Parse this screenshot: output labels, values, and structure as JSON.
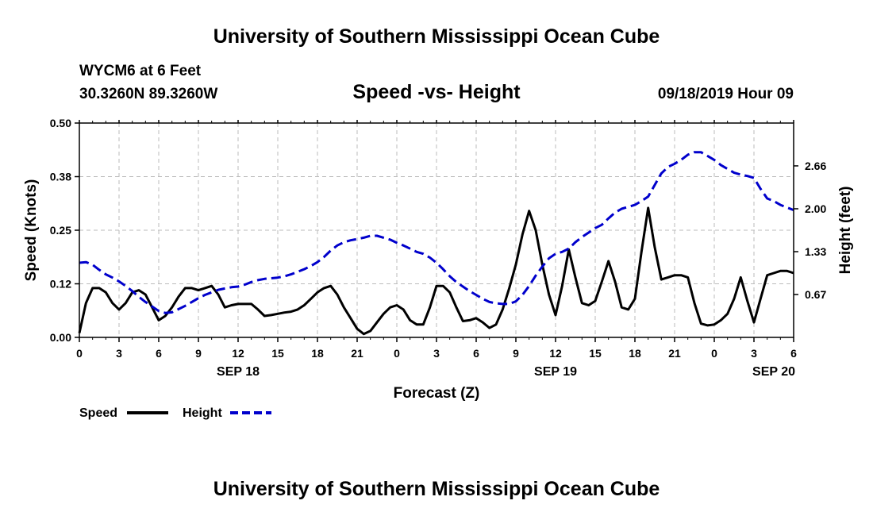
{
  "header": {
    "title": "University of Southern Mississippi Ocean Cube",
    "station": "WYCM6 at 6 Feet",
    "coords": "30.3260N 89.3260W",
    "subtitle": "Speed -vs- Height",
    "datetime": "09/18/2019 Hour 09"
  },
  "footer": {
    "title": "University of Southern Mississippi Ocean Cube"
  },
  "colors": {
    "speed": "#000000",
    "height": "#0000cc",
    "grid": "#bbbbbb"
  },
  "chart_data": {
    "type": "line",
    "title": "Speed -vs- Height",
    "xlabel": "Forecast (Z)",
    "ylabel_left": "Speed (Knots)",
    "ylabel_right": "Height (feet)",
    "x_hours_range": [
      0,
      54
    ],
    "x_ticks": [
      {
        "h": 0,
        "label": "0"
      },
      {
        "h": 3,
        "label": "3"
      },
      {
        "h": 6,
        "label": "6"
      },
      {
        "h": 9,
        "label": "9"
      },
      {
        "h": 12,
        "label": "12"
      },
      {
        "h": 15,
        "label": "15"
      },
      {
        "h": 18,
        "label": "18"
      },
      {
        "h": 21,
        "label": "21"
      },
      {
        "h": 24,
        "label": "0"
      },
      {
        "h": 27,
        "label": "3"
      },
      {
        "h": 30,
        "label": "6"
      },
      {
        "h": 33,
        "label": "9"
      },
      {
        "h": 36,
        "label": "12"
      },
      {
        "h": 39,
        "label": "15"
      },
      {
        "h": 42,
        "label": "18"
      },
      {
        "h": 45,
        "label": "21"
      },
      {
        "h": 48,
        "label": "0"
      },
      {
        "h": 51,
        "label": "3"
      },
      {
        "h": 54,
        "label": "6"
      }
    ],
    "date_labels": [
      {
        "h": 12,
        "label": "SEP 18"
      },
      {
        "h": 36,
        "label": "SEP 19"
      },
      {
        "h": 52.5,
        "label": "SEP 20"
      }
    ],
    "y_left": {
      "range": [
        0,
        0.5
      ],
      "ticks": [
        {
          "v": 0,
          "label": "0.00"
        },
        {
          "v": 0.125,
          "label": "0.12"
        },
        {
          "v": 0.25,
          "label": "0.25"
        },
        {
          "v": 0.375,
          "label": "0.38"
        },
        {
          "v": 0.5,
          "label": "0.50"
        }
      ]
    },
    "y_right": {
      "range": [
        0,
        3.333
      ],
      "ticks": [
        {
          "v": 0.667,
          "label": "0.67"
        },
        {
          "v": 1.333,
          "label": "1.33"
        },
        {
          "v": 2.0,
          "label": "2.00"
        },
        {
          "v": 2.667,
          "label": "2.66"
        }
      ]
    },
    "series": [
      {
        "name": "Speed",
        "axis": "left",
        "x": [
          0,
          0.5,
          1,
          1.5,
          2,
          2.5,
          3,
          3.5,
          4,
          4.5,
          5,
          5.5,
          6,
          6.5,
          7,
          7.5,
          8,
          8.5,
          9,
          9.5,
          10,
          10.5,
          11,
          11.5,
          12,
          12.5,
          13,
          13.5,
          14,
          14.5,
          15,
          15.5,
          16,
          16.5,
          17,
          17.5,
          18,
          18.5,
          19,
          19.5,
          20,
          20.5,
          21,
          21.5,
          22,
          22.5,
          23,
          23.5,
          24,
          24.5,
          25,
          25.5,
          26,
          26.5,
          27,
          27.5,
          28,
          28.5,
          29,
          29.5,
          30,
          30.5,
          31,
          31.5,
          32,
          32.5,
          33,
          33.5,
          34,
          34.5,
          35,
          35.5,
          36,
          36.5,
          37,
          37.5,
          38,
          38.5,
          39,
          39.5,
          40,
          40.5,
          41,
          41.5,
          42,
          42.5,
          43,
          43.5,
          44,
          44.5,
          45,
          45.5,
          46,
          46.5,
          47,
          47.5,
          48,
          48.5,
          49,
          49.5,
          50,
          50.5,
          51,
          51.5,
          52,
          52.5,
          53,
          53.5,
          54
        ],
        "values": [
          0.01,
          0.08,
          0.115,
          0.115,
          0.105,
          0.08,
          0.065,
          0.08,
          0.105,
          0.11,
          0.1,
          0.07,
          0.04,
          0.05,
          0.07,
          0.095,
          0.115,
          0.115,
          0.11,
          0.115,
          0.12,
          0.1,
          0.07,
          0.075,
          0.078,
          0.078,
          0.078,
          0.065,
          0.05,
          0.052,
          0.055,
          0.058,
          0.06,
          0.065,
          0.075,
          0.09,
          0.105,
          0.115,
          0.12,
          0.1,
          0.07,
          0.045,
          0.02,
          0.008,
          0.015,
          0.035,
          0.055,
          0.07,
          0.075,
          0.065,
          0.04,
          0.03,
          0.03,
          0.07,
          0.12,
          0.12,
          0.105,
          0.07,
          0.038,
          0.04,
          0.045,
          0.035,
          0.022,
          0.03,
          0.065,
          0.115,
          0.17,
          0.24,
          0.295,
          0.25,
          0.17,
          0.1,
          0.052,
          0.12,
          0.205,
          0.14,
          0.08,
          0.075,
          0.085,
          0.13,
          0.178,
          0.13,
          0.07,
          0.065,
          0.09,
          0.2,
          0.302,
          0.21,
          0.135,
          0.14,
          0.145,
          0.145,
          0.14,
          0.08,
          0.032,
          0.028,
          0.03,
          0.04,
          0.055,
          0.09,
          0.14,
          0.085,
          0.035,
          0.09,
          0.145,
          0.15,
          0.155,
          0.155,
          0.15
        ]
      },
      {
        "name": "Height",
        "axis": "right",
        "x": [
          0,
          0.5,
          1,
          1.5,
          2,
          2.5,
          3,
          3.5,
          4,
          4.5,
          5,
          5.5,
          6,
          6.5,
          7,
          7.5,
          8,
          8.5,
          9,
          9.5,
          10,
          10.5,
          11,
          11.5,
          12,
          12.5,
          13,
          13.5,
          14,
          14.5,
          15,
          15.5,
          16,
          16.5,
          17,
          17.5,
          18,
          18.5,
          19,
          19.5,
          20,
          20.5,
          21,
          21.5,
          22,
          22.5,
          23,
          23.5,
          24,
          24.5,
          25,
          25.5,
          26,
          26.5,
          27,
          27.5,
          28,
          28.5,
          29,
          29.5,
          30,
          30.5,
          31,
          31.5,
          32,
          32.5,
          33,
          33.5,
          34,
          34.5,
          35,
          35.5,
          36,
          36.5,
          37,
          37.5,
          38,
          38.5,
          39,
          39.5,
          40,
          40.5,
          41,
          41.5,
          42,
          42.5,
          43,
          43.5,
          44,
          44.5,
          45,
          45.5,
          46,
          46.5,
          47,
          47.5,
          48,
          48.5,
          49,
          49.5,
          50,
          50.5,
          51,
          51.5,
          52,
          52.5,
          53,
          53.5,
          54
        ],
        "values": [
          1.16,
          1.17,
          1.13,
          1.05,
          0.98,
          0.93,
          0.87,
          0.8,
          0.72,
          0.63,
          0.55,
          0.48,
          0.41,
          0.38,
          0.39,
          0.44,
          0.49,
          0.55,
          0.61,
          0.66,
          0.7,
          0.74,
          0.76,
          0.78,
          0.79,
          0.82,
          0.86,
          0.89,
          0.91,
          0.92,
          0.93,
          0.95,
          0.98,
          1.02,
          1.06,
          1.11,
          1.17,
          1.25,
          1.35,
          1.43,
          1.48,
          1.51,
          1.53,
          1.55,
          1.58,
          1.58,
          1.55,
          1.52,
          1.47,
          1.43,
          1.38,
          1.33,
          1.3,
          1.24,
          1.16,
          1.06,
          0.95,
          0.86,
          0.79,
          0.72,
          0.66,
          0.6,
          0.55,
          0.53,
          0.52,
          0.52,
          0.56,
          0.66,
          0.8,
          0.96,
          1.1,
          1.23,
          1.3,
          1.33,
          1.38,
          1.48,
          1.56,
          1.63,
          1.7,
          1.75,
          1.85,
          1.94,
          2.0,
          2.03,
          2.06,
          2.12,
          2.19,
          2.37,
          2.55,
          2.65,
          2.7,
          2.76,
          2.84,
          2.88,
          2.88,
          2.82,
          2.76,
          2.68,
          2.62,
          2.56,
          2.53,
          2.51,
          2.48,
          2.31,
          2.16,
          2.12,
          2.06,
          2.02,
          1.98
        ]
      }
    ],
    "legend": [
      {
        "name": "Speed",
        "label": "Speed"
      },
      {
        "name": "Height",
        "label": "Height"
      }
    ],
    "grid": true
  }
}
